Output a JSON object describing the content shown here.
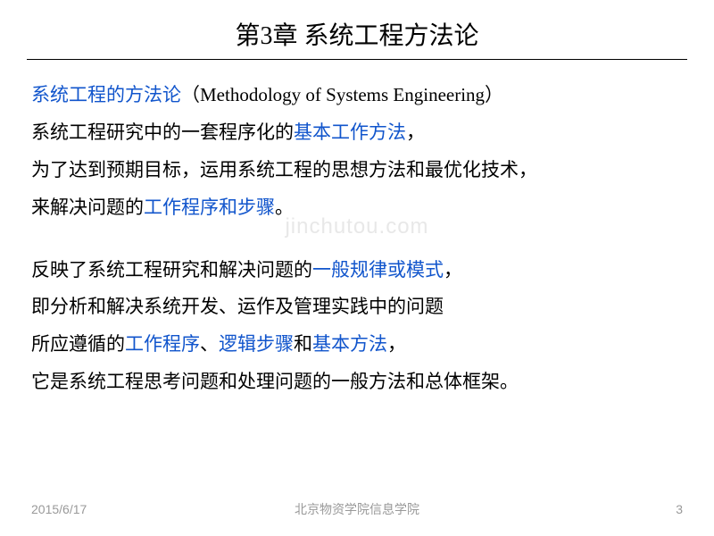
{
  "slide": {
    "title": "第3章 系统工程方法论",
    "watermark": "jinchutou.com",
    "colors": {
      "text": "#000000",
      "link": "#1155cc",
      "footer": "#999999",
      "watermark": "#e8e8e8",
      "background": "#ffffff",
      "divider": "#000000"
    },
    "typography": {
      "title_fontsize": 28,
      "body_fontsize": 21,
      "footer_fontsize": 14,
      "line_height": 1.9
    },
    "lines": {
      "l1_blue": "系统工程的方法论",
      "l1_rest": "（Methodology of Systems Engineering）",
      "l2_a": "系统工程研究中的一套程序化的",
      "l2_blue": "基本工作方法",
      "l2_b": "，",
      "l3": "为了达到预期目标，运用系统工程的思想方法和最优化技术，",
      "l4_a": "来解决问题的",
      "l4_blue": "工作程序和步骤",
      "l4_b": "。",
      "l5_a": "反映了系统工程研究和解决问题的",
      "l5_blue": "一般规律或模式",
      "l5_b": "，",
      "l6": "即分析和解决系统开发、运作及管理实践中的问题",
      "l7_a": "所应遵循的",
      "l7_blue1": "工作程序",
      "l7_mid": "、",
      "l7_blue2": "逻辑步骤",
      "l7_and": "和",
      "l7_blue3": "基本方法",
      "l7_b": "，",
      "l8": "它是系统工程思考问题和处理问题的一般方法和总体框架。"
    },
    "footer": {
      "date": "2015/6/17",
      "org": "北京物资学院信息学院",
      "page": "3"
    }
  }
}
